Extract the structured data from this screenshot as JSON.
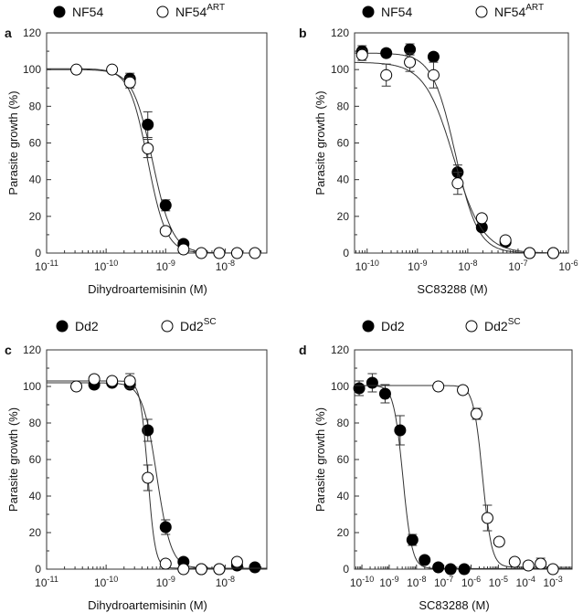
{
  "chart_data": [
    {
      "panel": "a",
      "type": "scatter",
      "xlabel": "Dihydroartemisinin (M)",
      "ylabel": "Parasite growth (%)",
      "x_scale": "log10",
      "xlim_log10": [
        -11,
        -7.3
      ],
      "ylim": [
        0,
        120
      ],
      "xticks": [
        {
          "base": "10",
          "exp": "-11",
          "v": -11
        },
        {
          "base": "10",
          "exp": "-10",
          "v": -10
        },
        {
          "base": "10",
          "exp": "-9",
          "v": -9
        },
        {
          "base": "10",
          "exp": "-8",
          "v": -8
        }
      ],
      "yticks": [
        0,
        20,
        40,
        60,
        80,
        100,
        120
      ],
      "legend_placement": "top",
      "series": [
        {
          "name": "NF54",
          "sup": "",
          "marker": "filled",
          "fit": {
            "top": 100,
            "bottom": 0,
            "logIC50": -9.22,
            "hill": 2.6
          },
          "x_log10": [
            -9.6,
            -9.3,
            -9.0,
            -8.7
          ],
          "y": [
            95,
            70,
            26,
            5
          ],
          "err": [
            3,
            7,
            3,
            1
          ]
        },
        {
          "name": "NF54",
          "sup": "ART",
          "marker": "open",
          "fit": {
            "top": 100.5,
            "bottom": 0,
            "logIC50": -9.3,
            "hill": 2.8
          },
          "x_log10": [
            -10.5,
            -9.9,
            -9.6,
            -9.3,
            -9.0,
            -8.7,
            -8.4,
            -8.1,
            -7.8,
            -7.5
          ],
          "y": [
            100,
            100,
            93,
            57,
            12,
            2,
            0,
            0,
            0,
            0
          ],
          "err": [
            0,
            0,
            3,
            5,
            0,
            0,
            0,
            0,
            0,
            0
          ]
        }
      ]
    },
    {
      "panel": "b",
      "type": "scatter",
      "xlabel": "SC83288 (M)",
      "ylabel": "Parasite growth (%)",
      "x_scale": "log10",
      "xlim_log10": [
        -10.25,
        -6
      ],
      "ylim": [
        0,
        120
      ],
      "xticks": [
        {
          "base": "10",
          "exp": "-10",
          "v": -10
        },
        {
          "base": "10",
          "exp": "-9",
          "v": -9
        },
        {
          "base": "10",
          "exp": "-8",
          "v": -8
        },
        {
          "base": "10",
          "exp": "-7",
          "v": -7
        },
        {
          "base": "10",
          "exp": "-6",
          "v": -6
        }
      ],
      "yticks": [
        0,
        20,
        40,
        60,
        80,
        100,
        120
      ],
      "legend_placement": "top",
      "series": [
        {
          "name": "NF54",
          "sup": "",
          "marker": "filled",
          "fit": {
            "top": 109,
            "bottom": 0,
            "logIC50": -8.25,
            "hill": 1.9
          },
          "x_log10": [
            -10.1,
            -9.62,
            -9.15,
            -8.68,
            -8.2,
            -7.72,
            -7.25,
            -6.77,
            -6.3
          ],
          "y": [
            110,
            109,
            111,
            107,
            44,
            14,
            6,
            0,
            0
          ],
          "err": [
            3,
            2,
            3,
            2,
            4,
            1,
            1,
            0,
            0
          ]
        },
        {
          "name": "NF54",
          "sup": "ART",
          "marker": "open",
          "fit": {
            "top": 104,
            "bottom": 0,
            "logIC50": -8.28,
            "hill": 1.5
          },
          "x_log10": [
            -10.1,
            -9.62,
            -9.15,
            -8.68,
            -8.2,
            -7.72,
            -7.25,
            -6.77,
            -6.3
          ],
          "y": [
            108,
            97,
            104,
            97,
            38,
            19,
            7,
            0,
            0
          ],
          "err": [
            3,
            6,
            5,
            7,
            6,
            1,
            1,
            0,
            0
          ]
        }
      ]
    },
    {
      "panel": "c",
      "type": "scatter",
      "xlabel": "Dihydroartemisinin (M)",
      "ylabel": "Parasite growth (%)",
      "x_scale": "log10",
      "xlim_log10": [
        -11,
        -7.3
      ],
      "ylim": [
        0,
        120
      ],
      "xticks": [
        {
          "base": "10",
          "exp": "-11",
          "v": -11
        },
        {
          "base": "10",
          "exp": "-10",
          "v": -10
        },
        {
          "base": "10",
          "exp": "-9",
          "v": -9
        },
        {
          "base": "10",
          "exp": "-8",
          "v": -8
        }
      ],
      "yticks": [
        0,
        20,
        40,
        60,
        80,
        100,
        120
      ],
      "legend_placement": "top",
      "series": [
        {
          "name": "Dd2",
          "sup": "",
          "marker": "filled",
          "fit": {
            "top": 102,
            "bottom": 0.5,
            "logIC50": -9.15,
            "hill": 3.6
          },
          "x_log10": [
            -10.2,
            -9.9,
            -9.6,
            -9.3,
            -9.0,
            -8.7,
            -8.4,
            -8.1,
            -7.8,
            -7.5
          ],
          "y": [
            101,
            102,
            101,
            76,
            23,
            4,
            0,
            0,
            2,
            1
          ],
          "err": [
            2,
            1,
            2,
            6,
            4,
            1,
            0,
            0,
            1,
            0
          ]
        },
        {
          "name": "Dd2",
          "sup": "SC",
          "marker": "open",
          "fit": {
            "top": 103,
            "bottom": 0.5,
            "logIC50": -9.3,
            "hill": 7
          },
          "x_log10": [
            -10.5,
            -10.2,
            -9.9,
            -9.6,
            -9.3,
            -9.0,
            -8.7,
            -8.4,
            -8.1,
            -7.8
          ],
          "y": [
            100,
            104,
            103,
            103,
            50,
            3,
            0,
            0,
            0,
            4
          ],
          "err": [
            0,
            2,
            1,
            4,
            7,
            0,
            0,
            0,
            0,
            1
          ]
        }
      ]
    },
    {
      "panel": "d",
      "type": "scatter",
      "xlabel": "SC83288 (M)",
      "ylabel": "Parasite growth (%)",
      "x_scale": "log10",
      "xlim_log10": [
        -10.27,
        -2.3
      ],
      "ylim": [
        0,
        120
      ],
      "xticks": [
        {
          "base": "10",
          "exp": "-10",
          "v": -10
        },
        {
          "base": "10",
          "exp": "-9",
          "v": -9
        },
        {
          "base": "10",
          "exp": "-8",
          "v": -8
        },
        {
          "base": "10",
          "exp": "-7",
          "v": -7
        },
        {
          "base": "10",
          "exp": "-6",
          "v": -6
        },
        {
          "base": "10",
          "exp": "-5",
          "v": -5
        },
        {
          "base": "10",
          "exp": "-4",
          "v": -4
        },
        {
          "base": "10",
          "exp": "-3",
          "v": -3
        }
      ],
      "yticks": [
        0,
        20,
        40,
        60,
        80,
        100,
        120
      ],
      "legend_placement": "top",
      "series": [
        {
          "name": "Dd2",
          "sup": "",
          "marker": "filled",
          "fit": {
            "top": 100.5,
            "bottom": 0.3,
            "logIC50": -8.5,
            "hill": 2.6
          },
          "x_log10": [
            -10.1,
            -9.62,
            -9.15,
            -8.6,
            -8.15,
            -7.7,
            -7.2,
            -6.75,
            -6.25
          ],
          "y": [
            99,
            102,
            96,
            76,
            16,
            5,
            1,
            0,
            0
          ],
          "err": [
            4,
            5,
            5,
            8,
            3,
            1,
            0,
            0,
            0
          ]
        },
        {
          "name": "Dd2",
          "sup": "SC",
          "marker": "open",
          "fit": {
            "top": 100.5,
            "bottom": 1,
            "logIC50": -5.58,
            "hill": 2.6
          },
          "x_log10": [
            -7.2,
            -6.3,
            -5.8,
            -5.4,
            -4.97,
            -4.4,
            -3.9,
            -3.45,
            -3.0
          ],
          "y": [
            100,
            98,
            85,
            28,
            15,
            4,
            2,
            3,
            0
          ],
          "err": [
            0,
            2,
            3,
            7,
            1,
            0,
            1,
            3,
            0
          ]
        }
      ]
    }
  ]
}
